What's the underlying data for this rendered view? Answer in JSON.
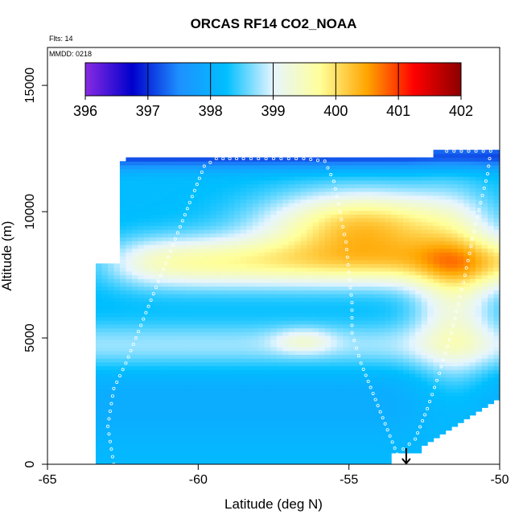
{
  "chart_data": {
    "type": "heatmap",
    "title": "ORCAS RF14 CO2_NOAA",
    "xlabel": "Latitude (deg N)",
    "ylabel": "Altitude (m)",
    "xlim": [
      -65,
      -50
    ],
    "ylim": [
      0,
      16500
    ],
    "x_ticks": [
      "-65",
      "-60",
      "-55",
      "-50"
    ],
    "x_tick_values": [
      -65,
      -60,
      -55,
      -50
    ],
    "y_ticks": [
      "0",
      "5000",
      "10000",
      "15000"
    ],
    "y_tick_values": [
      0,
      5000,
      10000,
      15000
    ],
    "annotations": [
      "Flts: 14",
      "MMDD: 0218"
    ],
    "colorbar": {
      "min": 396,
      "max": 402,
      "ticks": [
        "396",
        "397",
        "398",
        "399",
        "400",
        "401",
        "402"
      ],
      "tick_values": [
        396,
        397,
        398,
        399,
        400,
        401,
        402
      ],
      "colors": [
        "#8a2be2",
        "#0000cd",
        "#1e90ff",
        "#00bfff",
        "#e6f5ff",
        "#ffff99",
        "#ffa500",
        "#ff0000",
        "#8b0000"
      ]
    },
    "legend": "top",
    "grid": false,
    "marker": {
      "latitude": -53.1,
      "altitude": 0,
      "symbol": "down-arrow"
    },
    "flight_track": [
      [
        -62.8,
        0
      ],
      [
        -63.0,
        1500
      ],
      [
        -62.8,
        3000
      ],
      [
        -62.4,
        4000
      ],
      [
        -61.9,
        5500
      ],
      [
        -61.4,
        7000
      ],
      [
        -61.0,
        8200
      ],
      [
        -60.6,
        9400
      ],
      [
        -60.2,
        10600
      ],
      [
        -59.8,
        11800
      ],
      [
        -59.4,
        12100
      ],
      [
        -58.5,
        12100
      ],
      [
        -57.5,
        12100
      ],
      [
        -56.5,
        12100
      ],
      [
        -55.8,
        12000
      ],
      [
        -55.5,
        11200
      ],
      [
        -55.3,
        10000
      ],
      [
        -55.1,
        8800
      ],
      [
        -55.0,
        7600
      ],
      [
        -54.9,
        6400
      ],
      [
        -54.9,
        5200
      ],
      [
        -54.6,
        4000
      ],
      [
        -54.2,
        2800
      ],
      [
        -53.8,
        1600
      ],
      [
        -53.4,
        400
      ],
      [
        -52.8,
        1000
      ],
      [
        -52.4,
        2200
      ],
      [
        -52.0,
        3600
      ],
      [
        -51.6,
        5200
      ],
      [
        -51.2,
        7200
      ],
      [
        -50.8,
        9500
      ],
      [
        -50.4,
        11500
      ],
      [
        -50.3,
        12400
      ],
      [
        -52.0,
        12400
      ]
    ]
  }
}
